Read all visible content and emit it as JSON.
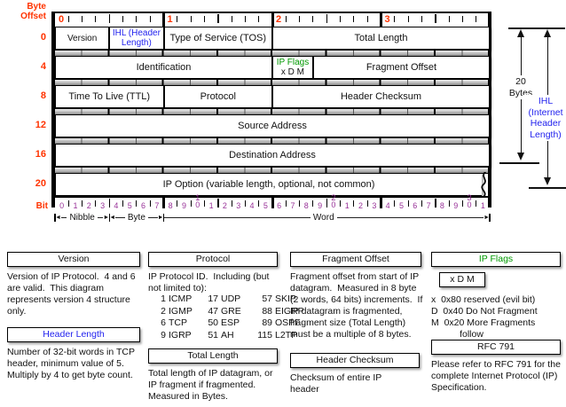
{
  "colors": {
    "red": "#ff3300",
    "blue": "#2222ee",
    "green": "#009900",
    "purple": "#993399",
    "black": "#111111"
  },
  "diagram": {
    "byte_offset_label": "Byte\nOffset",
    "bit_label": "Bit",
    "top_byte_numbers": [
      "0",
      "1",
      "2",
      "3"
    ],
    "rows": [
      {
        "offset": "0",
        "cells": [
          {
            "name": "version",
            "label": "Version",
            "start": 0,
            "bits": 4
          },
          {
            "name": "ihl",
            "label": "IHL (Header\nLength)",
            "start": 4,
            "bits": 4,
            "color": "#2222ee"
          },
          {
            "name": "tos",
            "label": "Type of Service (TOS)",
            "start": 8,
            "bits": 8
          },
          {
            "name": "total-length",
            "label": "Total Length",
            "start": 16,
            "bits": 16
          }
        ]
      },
      {
        "offset": "4",
        "cells": [
          {
            "name": "identification",
            "label": "Identification",
            "start": 0,
            "bits": 16
          },
          {
            "name": "ip-flags",
            "label": "IP Flags",
            "sub": "x   D   M",
            "start": 16,
            "bits": 3,
            "color": "#009900"
          },
          {
            "name": "fragment-offset",
            "label": "Fragment Offset",
            "start": 19,
            "bits": 13
          }
        ]
      },
      {
        "offset": "8",
        "cells": [
          {
            "name": "ttl",
            "label": "Time To Live (TTL)",
            "start": 0,
            "bits": 8
          },
          {
            "name": "protocol",
            "label": "Protocol",
            "start": 8,
            "bits": 8
          },
          {
            "name": "header-checksum",
            "label": "Header Checksum",
            "start": 16,
            "bits": 16
          }
        ]
      },
      {
        "offset": "12",
        "cells": [
          {
            "name": "source-address",
            "label": "Source Address",
            "start": 0,
            "bits": 32
          }
        ]
      },
      {
        "offset": "16",
        "cells": [
          {
            "name": "destination-address",
            "label": "Destination Address",
            "start": 0,
            "bits": 32
          }
        ]
      },
      {
        "offset": "20",
        "cells": [
          {
            "name": "ip-option",
            "label": "IP Option (variable length, optional, not common)",
            "start": 0,
            "bits": 32,
            "squiggle": true
          }
        ]
      }
    ],
    "bottom_bit_numbers": [
      "0",
      "1",
      "2",
      "3",
      "4",
      "5",
      "6",
      "7",
      "8",
      "9",
      "10",
      "1",
      "2",
      "3",
      "4",
      "5",
      "6",
      "7",
      "8",
      "9",
      "20",
      "1",
      "2",
      "3",
      "4",
      "5",
      "6",
      "7",
      "8",
      "9",
      "30",
      "1"
    ],
    "scale_segments": [
      {
        "label": "Nibble",
        "from": 0,
        "to": 4,
        "left_arrow": true
      },
      {
        "label": "Byte",
        "from": 4,
        "to": 8,
        "left_arrow": true
      },
      {
        "label": "Word",
        "from": 8,
        "to": 32,
        "left_arrow": false
      }
    ],
    "annotations": {
      "bytes20": "20\nBytes",
      "ihl": "IHL\n(Internet\nHeader\nLength)"
    }
  },
  "notes": [
    {
      "id": "version",
      "title": "Version",
      "title_color": "#111111",
      "body": "Version of IP Protocol.  4 and 6 are valid.  This diagram represents version 4 structure only."
    },
    {
      "id": "header-length",
      "title": "Header Length",
      "title_color": "#2222ee",
      "body": "Number of 32-bit words in TCP header, minimum value of 5.  Multiply by 4 to get byte count."
    },
    {
      "id": "protocol",
      "title": "Protocol",
      "title_color": "#111111",
      "body": "IP Protocol ID.  Including (but not limited to):",
      "table": [
        [
          "1",
          "ICMP",
          "17",
          "UDP",
          "57",
          "SKIP"
        ],
        [
          "2",
          "IGMP",
          "47",
          "GRE",
          "88",
          "EIGRP"
        ],
        [
          "6",
          "TCP",
          "50",
          "ESP",
          "89",
          "OSPF"
        ],
        [
          "9",
          "IGRP",
          "51",
          "AH",
          "115",
          "L2TP"
        ]
      ]
    },
    {
      "id": "total-length",
      "title": "Total Length",
      "title_color": "#111111",
      "body": "Total length of IP datagram, or IP fragment if fragmented.  Measured in Bytes."
    },
    {
      "id": "fragment-offset",
      "title": "Fragment Offset",
      "title_color": "#111111",
      "body": "Fragment offset from start of IP datagram.  Measured in 8 byte (2 words, 64 bits) increments.  If IP datagram is fragmented, fragment size (Total Length) must be a multiple of 8 bytes."
    },
    {
      "id": "header-checksum",
      "title": "Header Checksum",
      "title_color": "#111111",
      "body": "Checksum of entire IP header"
    },
    {
      "id": "ip-flags",
      "title": "IP Flags",
      "title_color": "#009900",
      "flag_box": "x  D  M",
      "body": "x  0x80 reserved (evil bit)\nD  0x40 Do Not Fragment\nM  0x20 More Fragments\n           follow"
    },
    {
      "id": "rfc-791",
      "title": "RFC 791",
      "title_color": "#111111",
      "body": "Please refer to RFC 791 for the complete Internet Protocol (IP) Specification."
    }
  ]
}
